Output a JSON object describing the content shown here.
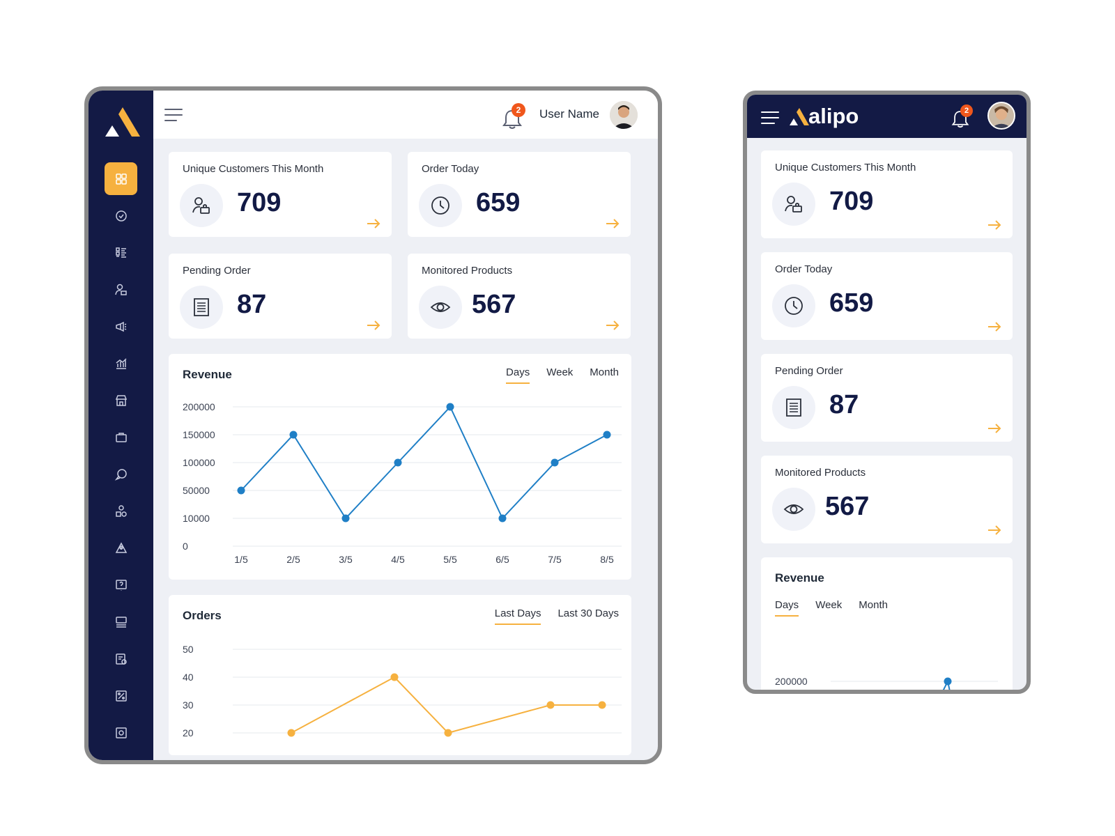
{
  "header": {
    "username": "User Name",
    "notifications": "2"
  },
  "brand": {
    "name": "alipo"
  },
  "stats": [
    {
      "title": "Unique Customers This Month",
      "value": "709",
      "icon": "users-icon"
    },
    {
      "title": "Order Today",
      "value": "659",
      "icon": "clock-icon"
    },
    {
      "title": "Pending Order",
      "value": "87",
      "icon": "receipt-icon"
    },
    {
      "title": "Monitored Products",
      "value": "567",
      "icon": "eye-icon"
    }
  ],
  "sidebar": {
    "items": [
      "dashboard-icon",
      "badge-icon",
      "list-icon",
      "customers-icon",
      "megaphone-icon",
      "analytics-icon",
      "store-icon",
      "briefcase-icon",
      "chat-icon",
      "shapes-icon",
      "alert-icon",
      "help-icon",
      "monitor-icon",
      "report-icon",
      "discount-icon",
      "settings-icon"
    ]
  },
  "revenue": {
    "title": "Revenue",
    "tabs": [
      "Days",
      "Week",
      "Month"
    ],
    "active_tab": "Days"
  },
  "orders": {
    "title": "Orders",
    "tabs": [
      "Last Days",
      "Last 30 Days"
    ],
    "active_tab": "Last Days"
  },
  "colors": {
    "navy": "#131a45",
    "accent": "#f6b13f",
    "line_blue": "#1f7fc6",
    "badge": "#f0571c"
  },
  "chart_data": [
    {
      "type": "line",
      "title": "Revenue",
      "categories": [
        "1/5",
        "2/5",
        "3/5",
        "4/5",
        "5/5",
        "6/5",
        "7/5",
        "8/5"
      ],
      "y_ticks": [
        "0",
        "10000",
        "50000",
        "100000",
        "150000",
        "200000"
      ],
      "series": [
        {
          "values": [
            50000,
            150000,
            10000,
            100000,
            200000,
            10000,
            100000,
            150000
          ]
        }
      ],
      "grid": true
    },
    {
      "type": "line",
      "title": "Orders",
      "y_ticks": [
        "20",
        "30",
        "40",
        "50"
      ],
      "series": [
        {
          "values": [
            20,
            40,
            20,
            30,
            30
          ]
        }
      ],
      "grid": true
    }
  ]
}
